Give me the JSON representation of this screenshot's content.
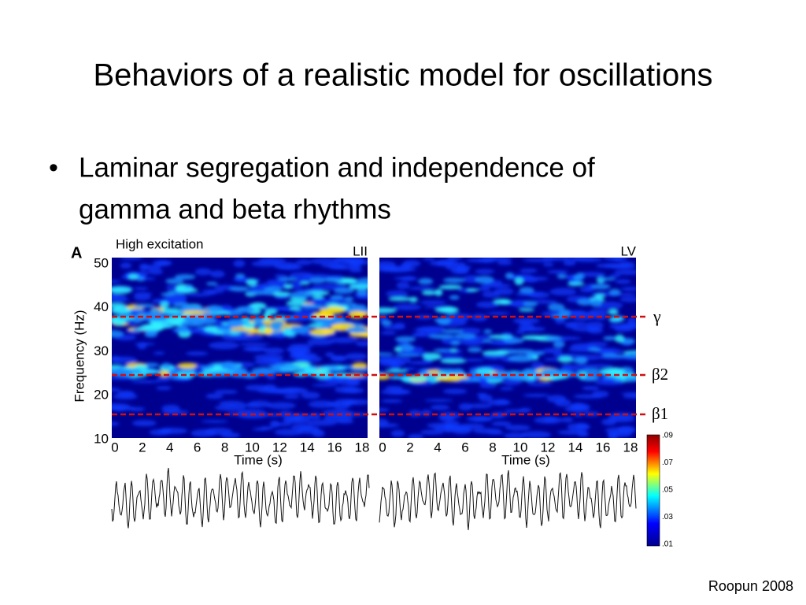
{
  "title": "Behaviors of a realistic model for oscillations",
  "bullets": [
    "Laminar segregation and independence of",
    "gamma and beta rhythms"
  ],
  "figure": {
    "panel_label": "A",
    "condition": "High excitation",
    "left_layer": "LII",
    "right_layer": "LV",
    "y_axis_label": "Frequency (Hz)",
    "y_ticks": [
      "50",
      "40",
      "30",
      "20",
      "10"
    ],
    "left_x_ticks": [
      "0",
      "2",
      "4",
      "6",
      "8",
      "10",
      "12",
      "14",
      "16",
      "18"
    ],
    "right_x_ticks": [
      "0",
      "2",
      "4",
      "6",
      "8",
      "10",
      "12",
      "14",
      "16",
      "18"
    ],
    "left_x_label": "Time (s)",
    "right_x_label": "Time (s)",
    "band_labels": [
      "γ",
      "β2",
      "β1"
    ],
    "colorbar_ticks": [
      ".09",
      ".07",
      ".05",
      ".03",
      ".01"
    ]
  },
  "citation": "Roopun 2008"
}
